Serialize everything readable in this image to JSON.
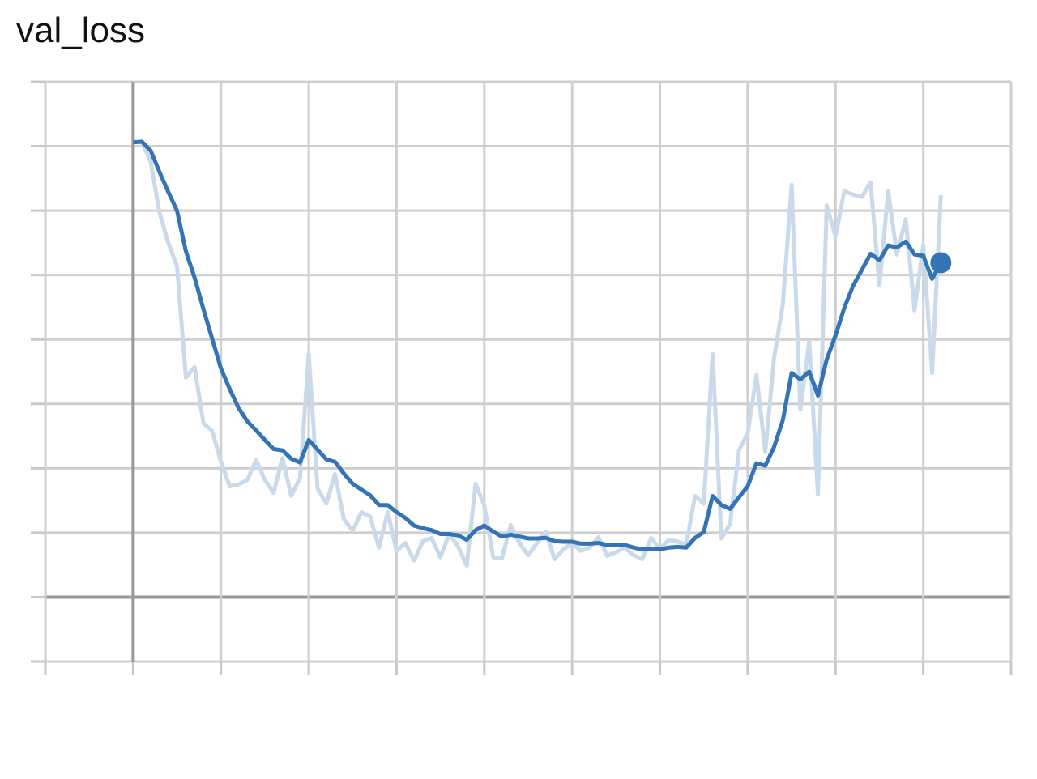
{
  "chart_data": {
    "type": "line",
    "title": "val_loss",
    "x": [
      0,
      1,
      2,
      3,
      4,
      5,
      6,
      7,
      8,
      9,
      10,
      11,
      12,
      13,
      14,
      15,
      16,
      17,
      18,
      19,
      20,
      21,
      22,
      23,
      24,
      25,
      26,
      27,
      28,
      29,
      30,
      31,
      32,
      33,
      34,
      35,
      36,
      37,
      38,
      39,
      40,
      41,
      42,
      43,
      44,
      45,
      46,
      47,
      48,
      49,
      50,
      51,
      52,
      53,
      54,
      55,
      56,
      57,
      58,
      59,
      60,
      61,
      62,
      63,
      64,
      65,
      66,
      67,
      68,
      69,
      70,
      71,
      72,
      73,
      74,
      75,
      76,
      77,
      78,
      79,
      80,
      81,
      82,
      83,
      84,
      85,
      86,
      87,
      88,
      89,
      90,
      91,
      92
    ],
    "series": [
      {
        "color": "#c9dbeb",
        "values": [
          70.6,
          70.7,
          67.5,
          59.7,
          55.0,
          51.4,
          34.1,
          35.7,
          27.0,
          25.8,
          21.0,
          17.2,
          17.5,
          18.2,
          21.3,
          18.2,
          16.2,
          21.6,
          15.7,
          18.5,
          37.7,
          16.9,
          14.5,
          19.1,
          12.1,
          10.3,
          13.2,
          12.5,
          7.7,
          13.2,
          7.2,
          8.4,
          5.7,
          8.7,
          9.2,
          6.2,
          9.8,
          7.9,
          4.9,
          17.6,
          14.2,
          6.2,
          6.0,
          11.2,
          8.4,
          6.5,
          8.4,
          10.2,
          5.9,
          7.4,
          8.4,
          7.2,
          7.7,
          9.3,
          6.4,
          7.0,
          7.7,
          6.5,
          5.9,
          9.2,
          7.5,
          8.9,
          8.6,
          8.2,
          15.7,
          14.5,
          37.7,
          9.1,
          11.4,
          22.8,
          25.4,
          34.5,
          22.5,
          37.1,
          45.5,
          64.0,
          29.1,
          39.7,
          16.0,
          60.8,
          56.0,
          63.0,
          62.5,
          62.1,
          64.4,
          48.4,
          63.0,
          53.2,
          58.7,
          44.5,
          54.7,
          34.8,
          62.4
        ]
      },
      {
        "color": "#3474b5",
        "values": [
          70.6,
          70.7,
          69.3,
          66.0,
          62.9,
          60.0,
          53.7,
          49.6,
          44.7,
          40.1,
          35.5,
          32.3,
          29.4,
          27.3,
          25.9,
          24.4,
          23.0,
          22.8,
          21.5,
          20.9,
          24.4,
          22.9,
          21.4,
          21.0,
          19.2,
          17.6,
          16.7,
          15.8,
          14.3,
          14.3,
          13.2,
          12.3,
          11.1,
          10.7,
          10.4,
          9.8,
          9.8,
          9.6,
          8.9,
          10.4,
          11.1,
          10.2,
          9.4,
          9.7,
          9.4,
          9.1,
          9.1,
          9.2,
          8.7,
          8.6,
          8.6,
          8.3,
          8.3,
          8.4,
          8.1,
          8.1,
          8.1,
          7.7,
          7.4,
          7.5,
          7.4,
          7.7,
          7.8,
          7.7,
          9.2,
          10.1,
          15.7,
          14.3,
          13.7,
          15.5,
          17.2,
          20.8,
          20.4,
          23.3,
          27.5,
          34.8,
          33.8,
          35.0,
          31.3,
          36.9,
          40.6,
          44.9,
          48.3,
          50.8,
          53.3,
          52.3,
          54.6,
          54.3,
          55.2,
          53.2,
          53.0,
          49.4,
          51.9
        ],
        "end_marker": true
      }
    ],
    "xlim": [
      -10,
      100
    ],
    "xticks": [
      -10,
      0,
      10,
      20,
      30,
      40,
      50,
      60,
      70,
      80,
      90,
      100
    ],
    "ylim": [
      -10,
      80
    ],
    "yticks": [
      -10,
      0,
      10,
      20,
      30,
      40,
      50,
      60,
      70,
      80
    ],
    "grid": true
  }
}
